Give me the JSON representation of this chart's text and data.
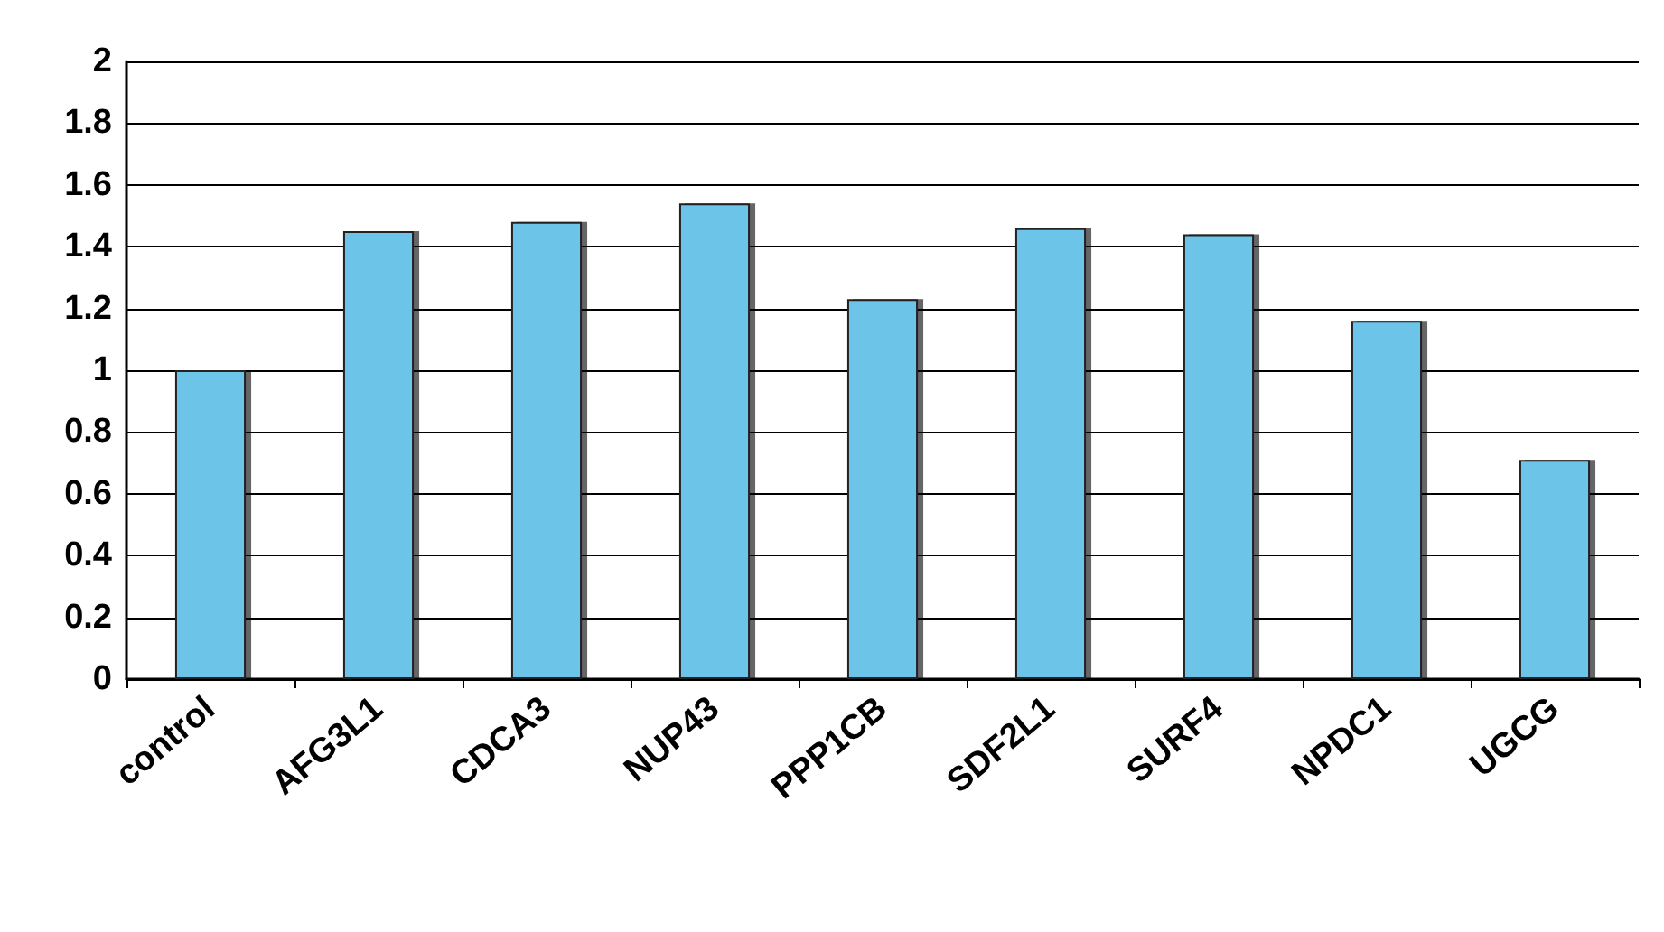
{
  "chart_data": {
    "type": "bar",
    "categories": [
      "control",
      "AFG3L1",
      "CDCA3",
      "NUP43",
      "PPP1CB",
      "SDF2L1",
      "SURF4",
      "NPDC1",
      "UGCG"
    ],
    "values": [
      1.0,
      1.45,
      1.48,
      1.54,
      1.23,
      1.46,
      1.44,
      1.16,
      0.71
    ],
    "color": "#6cc4e8",
    "ylim": [
      0,
      2
    ],
    "yticks": [
      0,
      0.2,
      0.4,
      0.6,
      0.8,
      1,
      1.2,
      1.4,
      1.6,
      1.8,
      2
    ],
    "grid": "y"
  }
}
